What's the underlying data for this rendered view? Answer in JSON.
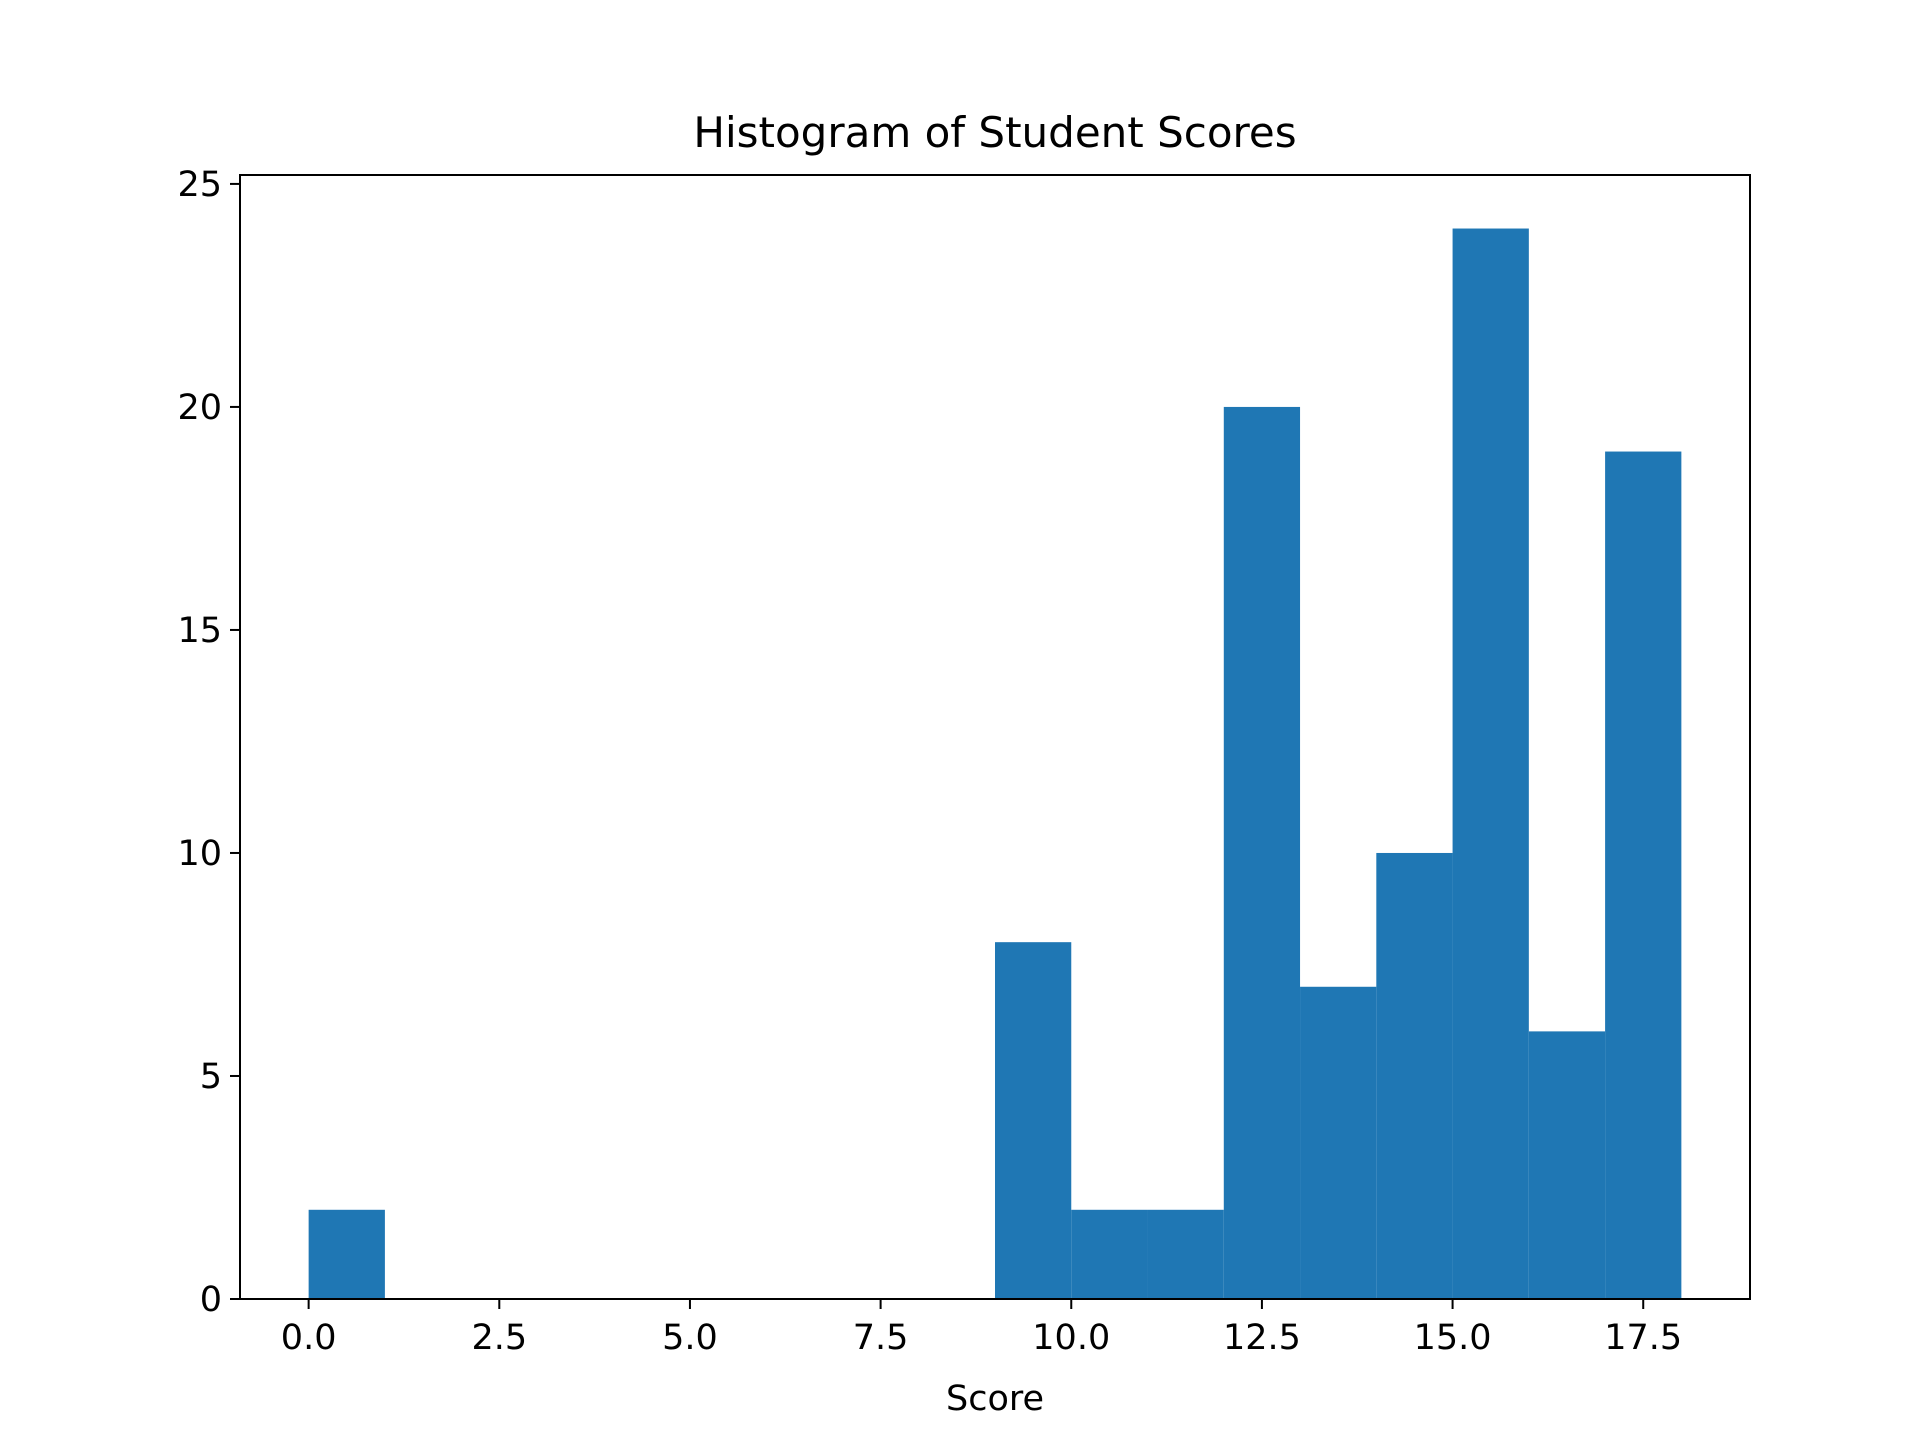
{
  "chart_data": {
    "type": "bar",
    "title": "Histogram of Student Scores",
    "xlabel": "Score",
    "ylabel": "",
    "xlim": [
      -0.9,
      18.9
    ],
    "ylim": [
      0,
      25.2
    ],
    "x_ticks": [
      0.0,
      2.5,
      5.0,
      7.5,
      10.0,
      12.5,
      15.0,
      17.5
    ],
    "x_tick_labels": [
      "0.0",
      "2.5",
      "5.0",
      "7.5",
      "10.0",
      "12.5",
      "15.0",
      "17.5"
    ],
    "y_ticks": [
      0,
      5,
      10,
      15,
      20,
      25
    ],
    "y_tick_labels": [
      "0",
      "5",
      "10",
      "15",
      "20",
      "25"
    ],
    "grid": false,
    "bar_color": "#1f77b4",
    "bins": [
      {
        "start": 0,
        "end": 1,
        "count": 2
      },
      {
        "start": 1,
        "end": 2,
        "count": 0
      },
      {
        "start": 2,
        "end": 3,
        "count": 0
      },
      {
        "start": 3,
        "end": 4,
        "count": 0
      },
      {
        "start": 4,
        "end": 5,
        "count": 0
      },
      {
        "start": 5,
        "end": 6,
        "count": 0
      },
      {
        "start": 6,
        "end": 7,
        "count": 0
      },
      {
        "start": 7,
        "end": 8,
        "count": 0
      },
      {
        "start": 8,
        "end": 9,
        "count": 0
      },
      {
        "start": 9,
        "end": 10,
        "count": 8
      },
      {
        "start": 10,
        "end": 11,
        "count": 2
      },
      {
        "start": 11,
        "end": 12,
        "count": 2
      },
      {
        "start": 12,
        "end": 13,
        "count": 20
      },
      {
        "start": 13,
        "end": 14,
        "count": 7
      },
      {
        "start": 14,
        "end": 15,
        "count": 10
      },
      {
        "start": 15,
        "end": 16,
        "count": 24
      },
      {
        "start": 16,
        "end": 17,
        "count": 6
      },
      {
        "start": 17,
        "end": 18,
        "count": 19
      }
    ]
  }
}
